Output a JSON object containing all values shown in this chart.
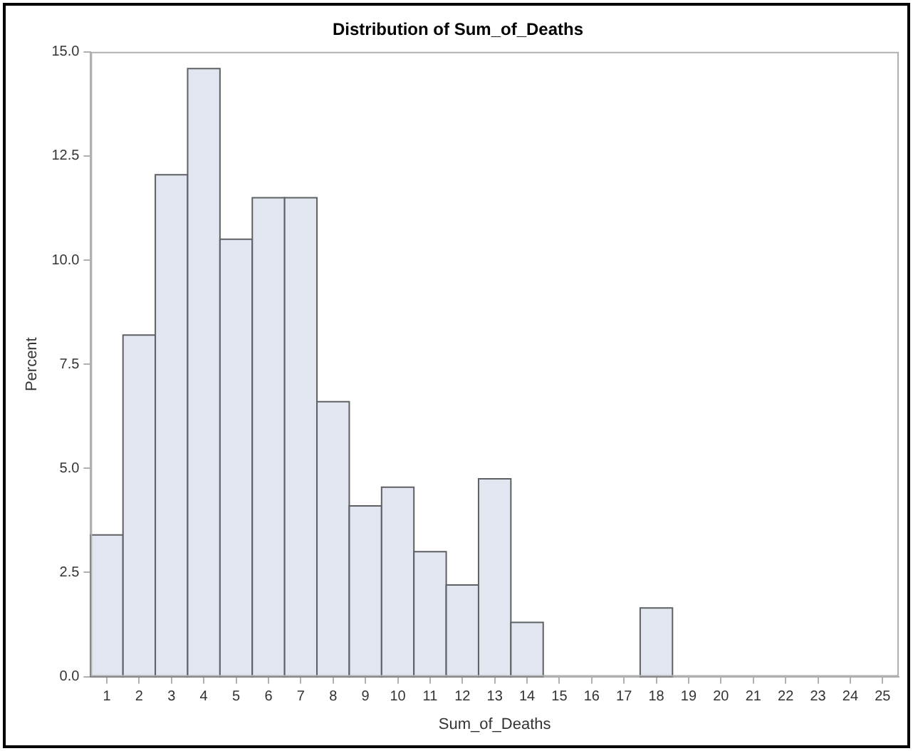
{
  "chart_data": {
    "type": "histogram",
    "title": "Distribution of Sum_of_Deaths",
    "xlabel": "Sum_of_Deaths",
    "ylabel": "Percent",
    "bins": [
      0.5,
      1.5,
      2.5,
      3.5,
      4.5,
      5.5,
      6.5,
      7.5,
      8.5,
      9.5,
      10.5,
      11.5,
      12.5,
      13.5,
      14.5,
      15.5,
      16.5,
      17.5,
      18.5,
      19.5,
      20.5,
      21.5,
      22.5,
      23.5,
      24.5,
      25.5
    ],
    "values": [
      3.4,
      8.2,
      12.05,
      14.6,
      10.5,
      11.5,
      11.5,
      6.6,
      4.1,
      4.55,
      3.0,
      2.2,
      4.75,
      1.3,
      0,
      0,
      0,
      1.65,
      0,
      0,
      0,
      0,
      0,
      0,
      0
    ],
    "color": "#e1e6f0",
    "xlim": [
      0.5,
      25.5
    ],
    "xticks": [
      1,
      2,
      3,
      4,
      5,
      6,
      7,
      8,
      9,
      10,
      11,
      12,
      13,
      14,
      15,
      16,
      17,
      18,
      19,
      20,
      21,
      22,
      23,
      24,
      25
    ],
    "ylim": [
      0,
      15
    ],
    "yticks": [
      {
        "value": 0,
        "label": "0.0"
      },
      {
        "value": 2.5,
        "label": "2.5"
      },
      {
        "value": 5,
        "label": "5.0"
      },
      {
        "value": 7.5,
        "label": "7.5"
      },
      {
        "value": 10,
        "label": "10.0"
      },
      {
        "value": 12.5,
        "label": "12.5"
      },
      {
        "value": 15,
        "label": "15.0"
      }
    ],
    "grid": false,
    "legend": false
  }
}
